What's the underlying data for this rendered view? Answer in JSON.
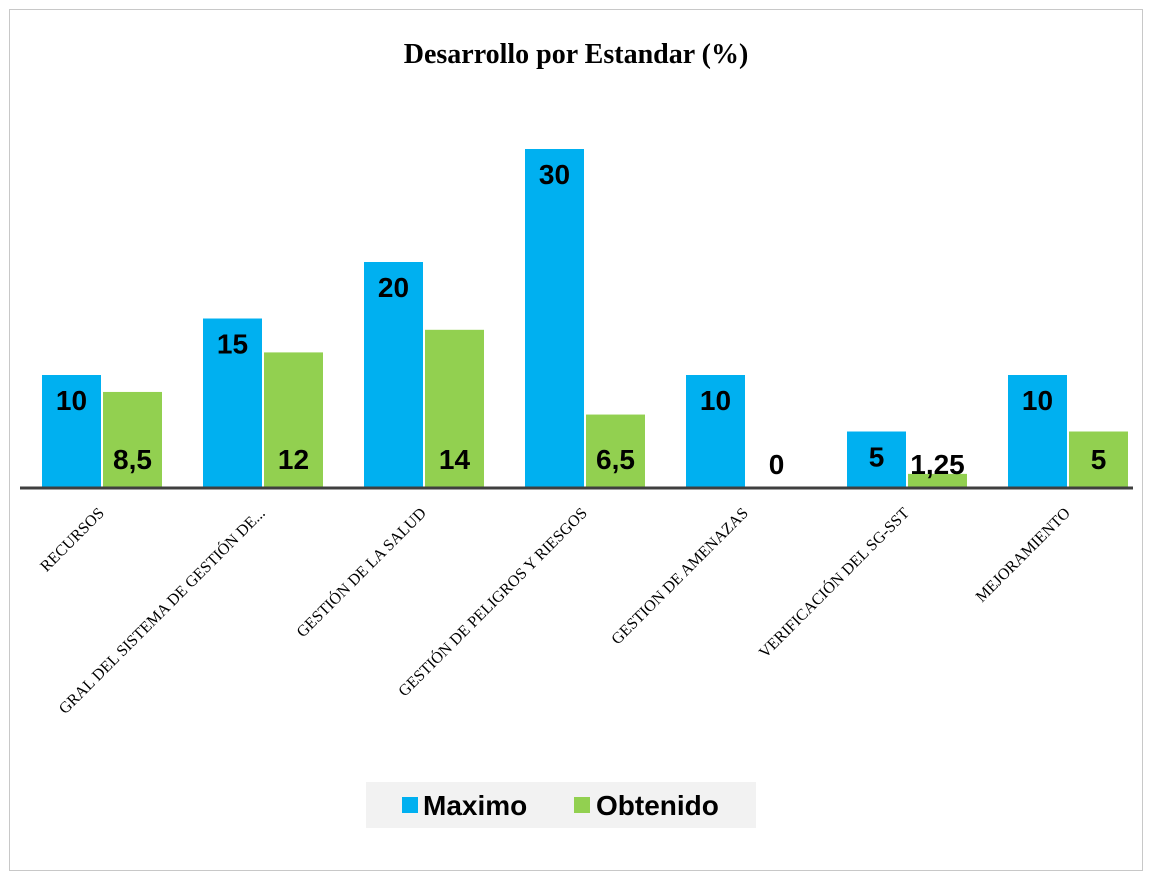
{
  "chart_data": {
    "type": "bar",
    "title": "Desarrollo por Estandar (%)",
    "xlabel": "",
    "ylabel": "",
    "ylim": [
      0,
      32
    ],
    "grid": false,
    "legend_position": "bottom",
    "categories": [
      "RECURSOS",
      "GRAL DEL SISTEMA DE GESTIÓN DE...",
      "GESTIÓN DE LA SALUD",
      "GESTIÓN DE PELIGROS Y RIESGOS",
      "GESTION DE AMENAZAS",
      "VERIFICACIÓN DEL SG-SST",
      "MEJORAMIENTO"
    ],
    "series": [
      {
        "name": "Maximo",
        "color": "#00b0f0",
        "values": [
          10,
          15,
          20,
          30,
          10,
          5,
          10
        ],
        "labels": [
          "10",
          "15",
          "20",
          "30",
          "10",
          "5",
          "10"
        ]
      },
      {
        "name": "Obtenido",
        "color": "#92d050",
        "values": [
          8.5,
          12,
          14,
          6.5,
          0,
          1.25,
          5
        ],
        "labels": [
          "8,5",
          "12",
          "14",
          "6,5",
          "0",
          "1,25",
          "5"
        ]
      }
    ]
  }
}
